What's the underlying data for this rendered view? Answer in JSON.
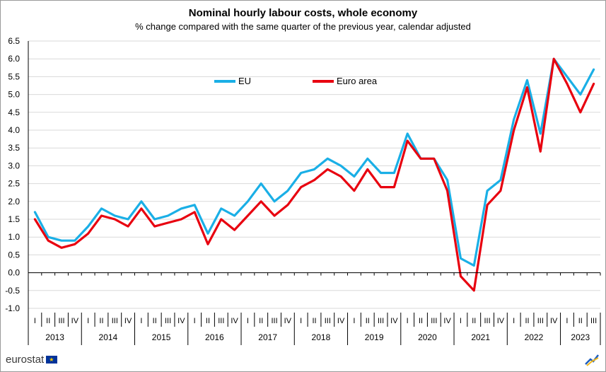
{
  "header": {
    "title": "Nominal hourly labour costs, whole economy",
    "subtitle": "% change compared with the same quarter of the previous year, calendar adjusted"
  },
  "brand": {
    "text": "eurostat",
    "flag_icon": "eu-flag-icon",
    "corner_icon": "eurostat-arrow-icon"
  },
  "colors": {
    "eu": "#1aafe6",
    "euro_area": "#e8000f",
    "grid": "#d9d9d9",
    "axis": "#000000"
  },
  "chart_data": {
    "type": "line",
    "title": "Nominal hourly labour costs, whole economy",
    "subtitle": "% change compared with the same quarter of the previous year, calendar adjusted",
    "xlabel": "",
    "ylabel": "",
    "ylim": [
      -1.0,
      6.5
    ],
    "yticks": [
      "6.5",
      "6.0",
      "5.5",
      "5.0",
      "4.5",
      "4.0",
      "3.5",
      "3.0",
      "2.5",
      "2.0",
      "1.5",
      "1.0",
      "0.5",
      "0.0",
      "-0.5",
      "-1.0"
    ],
    "grid": true,
    "legend_position": "top-left",
    "quarters": [
      "I",
      "II",
      "III",
      "IV",
      "I",
      "II",
      "III",
      "IV",
      "I",
      "II",
      "III",
      "IV",
      "I",
      "II",
      "III",
      "IV",
      "I",
      "II",
      "III",
      "IV",
      "I",
      "II",
      "III",
      "IV",
      "I",
      "II",
      "III",
      "IV",
      "I",
      "II",
      "III",
      "IV",
      "I",
      "II",
      "III",
      "IV",
      "I",
      "II",
      "III",
      "IV",
      "I",
      "II",
      "III"
    ],
    "years": [
      "2013",
      "2014",
      "2015",
      "2016",
      "2017",
      "2018",
      "2019",
      "2020",
      "2021",
      "2022",
      "2023"
    ],
    "series": [
      {
        "name": "EU",
        "values": [
          1.7,
          1.0,
          0.9,
          0.9,
          1.3,
          1.8,
          1.6,
          1.5,
          2.0,
          1.5,
          1.6,
          1.8,
          1.9,
          1.1,
          1.8,
          1.6,
          2.0,
          2.5,
          2.0,
          2.3,
          2.8,
          2.9,
          3.2,
          3.0,
          2.7,
          3.2,
          2.8,
          2.8,
          3.9,
          3.2,
          3.2,
          2.6,
          0.4,
          0.2,
          2.3,
          2.6,
          4.3,
          5.4,
          3.9,
          6.0,
          5.5,
          5.0,
          5.7
        ]
      },
      {
        "name": "Euro area",
        "values": [
          1.5,
          0.9,
          0.7,
          0.8,
          1.1,
          1.6,
          1.5,
          1.3,
          1.8,
          1.3,
          1.4,
          1.5,
          1.7,
          0.8,
          1.5,
          1.2,
          1.6,
          2.0,
          1.6,
          1.9,
          2.4,
          2.6,
          2.9,
          2.7,
          2.3,
          2.9,
          2.4,
          2.4,
          3.7,
          3.2,
          3.2,
          2.3,
          -0.1,
          -0.5,
          1.9,
          2.3,
          4.0,
          5.2,
          3.4,
          6.0,
          5.3,
          4.5,
          5.3
        ]
      }
    ]
  }
}
